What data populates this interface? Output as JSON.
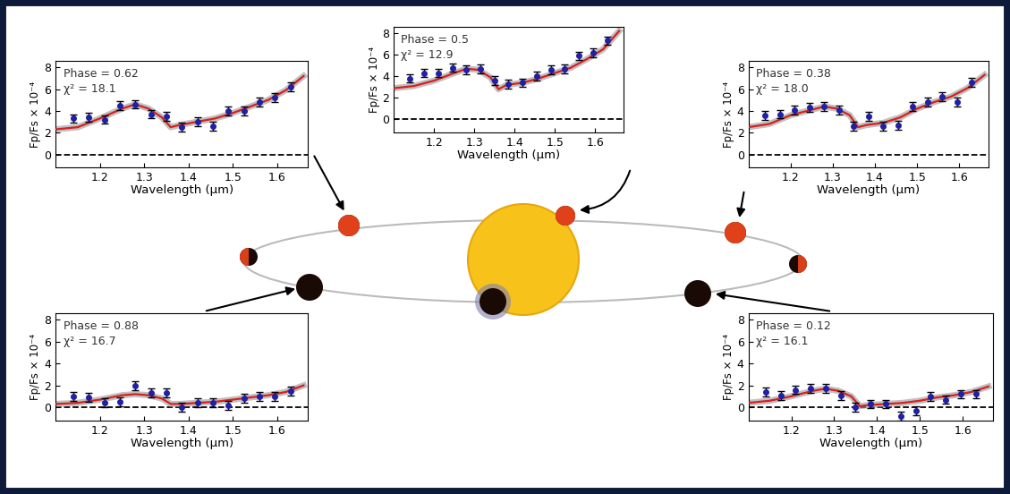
{
  "chart_data": [
    {
      "type": "scatter",
      "annotations": [
        "Phase = 0.62",
        "χ² = 18.1"
      ],
      "x_label": "Wavelength (μm)",
      "y_label": "Fp/Fs × 10⁻⁴",
      "xlim": [
        1.1,
        1.67
      ],
      "xticks": [
        1.2,
        1.3,
        1.4,
        1.5,
        1.6
      ],
      "ylim": [
        -1.2,
        8.6
      ],
      "yticks": [
        0,
        2,
        4,
        6,
        8
      ],
      "hline": {
        "value": 0,
        "line_style": "dashed",
        "color": "#000000"
      },
      "series": [
        {
          "type": "scatter",
          "color": "#1f1fa8",
          "marker": "o",
          "x": [
            1.14,
            1.175,
            1.21,
            1.245,
            1.28,
            1.315,
            1.35,
            1.385,
            1.42,
            1.455,
            1.49,
            1.525,
            1.56,
            1.595,
            1.63
          ],
          "values": [
            3.3,
            3.4,
            3.2,
            4.5,
            4.6,
            3.7,
            3.5,
            2.5,
            3.0,
            2.6,
            4.0,
            4.0,
            4.8,
            5.2,
            6.2
          ],
          "errors": [
            0.4,
            0.4,
            0.4,
            0.4,
            0.4,
            0.4,
            0.4,
            0.4,
            0.4,
            0.4,
            0.4,
            0.4,
            0.4,
            0.4,
            0.4
          ]
        },
        {
          "type": "line",
          "color": "#d62020",
          "line_style": "solid",
          "x": [
            1.1,
            1.15,
            1.2,
            1.25,
            1.28,
            1.31,
            1.34,
            1.36,
            1.38,
            1.42,
            1.46,
            1.5,
            1.54,
            1.58,
            1.62,
            1.66
          ],
          "values": [
            2.3,
            2.5,
            3.3,
            4.2,
            4.6,
            4.2,
            3.4,
            2.5,
            2.7,
            3.0,
            3.3,
            3.8,
            4.4,
            5.0,
            5.9,
            7.2
          ]
        }
      ]
    },
    {
      "type": "scatter",
      "annotations": [
        "Phase = 0.5",
        "χ² = 12.9"
      ],
      "x_label": "Wavelength (μm)",
      "y_label": "Fp/Fs × 10⁻⁴",
      "xlim": [
        1.1,
        1.67
      ],
      "xticks": [
        1.2,
        1.3,
        1.4,
        1.5,
        1.6
      ],
      "ylim": [
        -1.2,
        8.6
      ],
      "yticks": [
        0,
        2,
        4,
        6,
        8
      ],
      "hline": {
        "value": 0,
        "line_style": "dashed",
        "color": "#000000"
      },
      "series": [
        {
          "type": "scatter",
          "color": "#1f1fa8",
          "marker": "o",
          "x": [
            1.14,
            1.175,
            1.21,
            1.245,
            1.28,
            1.315,
            1.35,
            1.385,
            1.42,
            1.455,
            1.49,
            1.525,
            1.56,
            1.595,
            1.63
          ],
          "values": [
            3.8,
            4.3,
            4.3,
            4.8,
            4.6,
            4.7,
            3.6,
            3.3,
            3.4,
            4.0,
            4.6,
            4.7,
            5.9,
            6.2,
            7.3
          ],
          "errors": [
            0.4,
            0.4,
            0.4,
            0.4,
            0.4,
            0.4,
            0.4,
            0.4,
            0.4,
            0.4,
            0.4,
            0.4,
            0.4,
            0.4,
            0.4
          ]
        },
        {
          "type": "line",
          "color": "#d62020",
          "line_style": "solid",
          "x": [
            1.1,
            1.15,
            1.2,
            1.25,
            1.28,
            1.31,
            1.34,
            1.36,
            1.38,
            1.42,
            1.46,
            1.5,
            1.54,
            1.58,
            1.62,
            1.66
          ],
          "values": [
            2.9,
            3.1,
            3.6,
            4.3,
            4.7,
            4.6,
            3.9,
            2.8,
            3.2,
            3.4,
            3.8,
            4.3,
            4.8,
            5.6,
            6.5,
            8.2
          ]
        }
      ]
    },
    {
      "type": "scatter",
      "annotations": [
        "Phase = 0.38",
        "χ² = 18.0"
      ],
      "x_label": "Wavelength (μm)",
      "y_label": "Fp/Fs × 10⁻⁴",
      "xlim": [
        1.1,
        1.67
      ],
      "xticks": [
        1.2,
        1.3,
        1.4,
        1.5,
        1.6
      ],
      "ylim": [
        -1.2,
        8.6
      ],
      "yticks": [
        0,
        2,
        4,
        6,
        8
      ],
      "hline": {
        "value": 0,
        "line_style": "dashed",
        "color": "#000000"
      },
      "series": [
        {
          "type": "scatter",
          "color": "#1f1fa8",
          "marker": "o",
          "x": [
            1.14,
            1.175,
            1.21,
            1.245,
            1.28,
            1.315,
            1.35,
            1.385,
            1.42,
            1.455,
            1.49,
            1.525,
            1.56,
            1.595,
            1.63
          ],
          "values": [
            3.6,
            3.7,
            4.1,
            4.3,
            4.4,
            4.1,
            2.6,
            3.5,
            2.6,
            2.7,
            4.4,
            4.8,
            5.3,
            4.8,
            6.6
          ],
          "errors": [
            0.4,
            0.4,
            0.4,
            0.4,
            0.4,
            0.4,
            0.4,
            0.4,
            0.4,
            0.4,
            0.4,
            0.4,
            0.4,
            0.4,
            0.4
          ]
        },
        {
          "type": "line",
          "color": "#d62020",
          "line_style": "solid",
          "x": [
            1.1,
            1.15,
            1.2,
            1.25,
            1.28,
            1.31,
            1.34,
            1.36,
            1.38,
            1.42,
            1.46,
            1.5,
            1.54,
            1.58,
            1.62,
            1.66
          ],
          "values": [
            2.5,
            2.8,
            3.6,
            4.1,
            4.4,
            4.2,
            3.6,
            2.5,
            2.7,
            2.9,
            3.4,
            4.2,
            4.8,
            5.3,
            6.1,
            7.3
          ]
        }
      ]
    },
    {
      "type": "scatter",
      "annotations": [
        "Phase = 0.88",
        "χ² = 16.7"
      ],
      "x_label": "Wavelength (μm)",
      "y_label": "Fp/Fs × 10⁻⁴",
      "xlim": [
        1.1,
        1.67
      ],
      "xticks": [
        1.2,
        1.3,
        1.4,
        1.5,
        1.6
      ],
      "ylim": [
        -1.2,
        8.6
      ],
      "yticks": [
        0,
        2,
        4,
        6,
        8
      ],
      "hline": {
        "value": 0,
        "line_style": "dashed",
        "color": "#000000"
      },
      "series": [
        {
          "type": "scatter",
          "color": "#1f1fa8",
          "marker": "o",
          "x": [
            1.14,
            1.175,
            1.21,
            1.245,
            1.28,
            1.315,
            1.35,
            1.385,
            1.42,
            1.455,
            1.49,
            1.525,
            1.56,
            1.595,
            1.63
          ],
          "values": [
            1.0,
            0.9,
            0.4,
            0.5,
            2.0,
            1.3,
            1.3,
            0.0,
            0.4,
            0.4,
            0.2,
            0.8,
            1.0,
            1.0,
            1.5
          ],
          "errors": [
            0.4,
            0.4,
            0.4,
            0.4,
            0.4,
            0.4,
            0.4,
            0.4,
            0.4,
            0.4,
            0.4,
            0.4,
            0.4,
            0.4,
            0.4
          ]
        },
        {
          "type": "line",
          "color": "#d62020",
          "line_style": "solid",
          "x": [
            1.1,
            1.15,
            1.2,
            1.25,
            1.28,
            1.31,
            1.34,
            1.36,
            1.38,
            1.42,
            1.46,
            1.5,
            1.54,
            1.58,
            1.62,
            1.66
          ],
          "values": [
            0.3,
            0.4,
            0.7,
            1.1,
            1.2,
            1.1,
            0.8,
            0.3,
            0.3,
            0.4,
            0.5,
            0.7,
            0.9,
            1.1,
            1.4,
            2.0
          ]
        }
      ]
    },
    {
      "type": "scatter",
      "annotations": [
        "Phase = 0.12",
        "χ² = 16.1"
      ],
      "x_label": "Wavelength (μm)",
      "y_label": "Fp/Fs × 10⁻⁴",
      "xlim": [
        1.1,
        1.67
      ],
      "xticks": [
        1.2,
        1.3,
        1.4,
        1.5,
        1.6
      ],
      "ylim": [
        -1.2,
        8.6
      ],
      "yticks": [
        0,
        2,
        4,
        6,
        8
      ],
      "hline": {
        "value": 0,
        "line_style": "dashed",
        "color": "#000000"
      },
      "series": [
        {
          "type": "scatter",
          "color": "#1f1fa8",
          "marker": "o",
          "x": [
            1.14,
            1.175,
            1.21,
            1.245,
            1.28,
            1.315,
            1.35,
            1.385,
            1.42,
            1.455,
            1.49,
            1.525,
            1.56,
            1.595,
            1.63
          ],
          "values": [
            1.4,
            1.1,
            1.6,
            1.7,
            1.7,
            1.1,
            0.0,
            0.3,
            0.3,
            -0.8,
            -0.3,
            1.0,
            0.7,
            1.2,
            1.2
          ],
          "errors": [
            0.4,
            0.4,
            0.4,
            0.4,
            0.4,
            0.4,
            0.4,
            0.4,
            0.4,
            0.4,
            0.4,
            0.4,
            0.4,
            0.4,
            0.4
          ]
        },
        {
          "type": "line",
          "color": "#d62020",
          "line_style": "solid",
          "x": [
            1.1,
            1.15,
            1.2,
            1.25,
            1.28,
            1.31,
            1.34,
            1.36,
            1.38,
            1.42,
            1.46,
            1.5,
            1.54,
            1.58,
            1.62,
            1.66
          ],
          "values": [
            0.4,
            0.6,
            1.0,
            1.5,
            1.7,
            1.5,
            1.0,
            0.1,
            0.2,
            0.3,
            0.4,
            0.6,
            0.9,
            1.1,
            1.4,
            1.9
          ]
        }
      ]
    }
  ]
}
